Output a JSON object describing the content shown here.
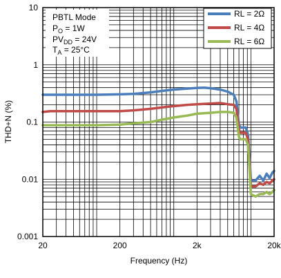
{
  "chart_data": {
    "type": "line",
    "xlabel": "Frequency (Hz)",
    "ylabel": "THD+N (%)",
    "x_scale": "log",
    "y_scale": "log",
    "xlim": [
      20,
      20000
    ],
    "ylim": [
      0.001,
      10
    ],
    "x_ticks": [
      {
        "value": 20,
        "label": "20"
      },
      {
        "value": 200,
        "label": "200"
      },
      {
        "value": 2000,
        "label": "2k"
      },
      {
        "value": 20000,
        "label": "20k"
      }
    ],
    "y_ticks": [
      {
        "value": 10,
        "label": "10"
      },
      {
        "value": 1,
        "label": "1"
      },
      {
        "value": 0.1,
        "label": "0.1"
      },
      {
        "value": 0.01,
        "label": "0.01"
      },
      {
        "value": 0.001,
        "label": "0.001"
      }
    ],
    "grid": true,
    "legend_position": "top-right",
    "conditions": {
      "mode": "PBTL Mode",
      "po_main": "P",
      "po_sub": "O",
      "po_rest": " = 1W",
      "pv_main": "PV",
      "pv_sub": "DD",
      "pv_rest": " = 24V",
      "ta_main": "T",
      "ta_sub": "A",
      "ta_rest": " = 25°C"
    },
    "series": [
      {
        "name": "RL = 2Ω",
        "color": "#4a7ebb",
        "points": [
          [
            20,
            0.3
          ],
          [
            50,
            0.3
          ],
          [
            100,
            0.3
          ],
          [
            200,
            0.305
          ],
          [
            300,
            0.31
          ],
          [
            500,
            0.33
          ],
          [
            700,
            0.35
          ],
          [
            1000,
            0.37
          ],
          [
            1500,
            0.385
          ],
          [
            2000,
            0.395
          ],
          [
            2500,
            0.4
          ],
          [
            3000,
            0.39
          ],
          [
            4000,
            0.37
          ],
          [
            5000,
            0.34
          ],
          [
            6000,
            0.3
          ],
          [
            6500,
            0.23
          ],
          [
            7000,
            0.09
          ],
          [
            7300,
            0.08
          ],
          [
            8000,
            0.08
          ],
          [
            8600,
            0.08
          ],
          [
            9200,
            0.06
          ],
          [
            9600,
            0.025
          ],
          [
            10000,
            0.0095
          ],
          [
            11500,
            0.0095
          ],
          [
            13000,
            0.0115
          ],
          [
            14500,
            0.0095
          ],
          [
            16000,
            0.0125
          ],
          [
            17500,
            0.0105
          ],
          [
            19000,
            0.013
          ],
          [
            20000,
            0.014
          ]
        ]
      },
      {
        "name": "RL = 4Ω",
        "color": "#be4b48",
        "points": [
          [
            20,
            0.15
          ],
          [
            25,
            0.155
          ],
          [
            50,
            0.155
          ],
          [
            100,
            0.155
          ],
          [
            200,
            0.155
          ],
          [
            300,
            0.16
          ],
          [
            500,
            0.17
          ],
          [
            700,
            0.18
          ],
          [
            1000,
            0.19
          ],
          [
            1500,
            0.2
          ],
          [
            2000,
            0.205
          ],
          [
            3000,
            0.21
          ],
          [
            4000,
            0.215
          ],
          [
            5000,
            0.205
          ],
          [
            6000,
            0.2
          ],
          [
            6500,
            0.17
          ],
          [
            7000,
            0.075
          ],
          [
            7300,
            0.065
          ],
          [
            8000,
            0.065
          ],
          [
            8600,
            0.065
          ],
          [
            9200,
            0.05
          ],
          [
            9600,
            0.02
          ],
          [
            10000,
            0.0075
          ],
          [
            11500,
            0.0075
          ],
          [
            13000,
            0.0085
          ],
          [
            14500,
            0.008
          ],
          [
            16000,
            0.009
          ],
          [
            17500,
            0.0085
          ],
          [
            19000,
            0.0095
          ],
          [
            20000,
            0.01
          ]
        ]
      },
      {
        "name": "RL = 6Ω",
        "color": "#98b954",
        "points": [
          [
            20,
            0.088
          ],
          [
            50,
            0.088
          ],
          [
            100,
            0.088
          ],
          [
            200,
            0.09
          ],
          [
            300,
            0.095
          ],
          [
            500,
            0.1
          ],
          [
            700,
            0.11
          ],
          [
            1000,
            0.12
          ],
          [
            1500,
            0.13
          ],
          [
            2000,
            0.14
          ],
          [
            3000,
            0.145
          ],
          [
            4000,
            0.15
          ],
          [
            5000,
            0.15
          ],
          [
            6000,
            0.145
          ],
          [
            6500,
            0.12
          ],
          [
            7000,
            0.055
          ],
          [
            7300,
            0.05
          ],
          [
            8000,
            0.05
          ],
          [
            8600,
            0.05
          ],
          [
            9200,
            0.04
          ],
          [
            9600,
            0.015
          ],
          [
            10000,
            0.0055
          ],
          [
            11500,
            0.005
          ],
          [
            13000,
            0.0055
          ],
          [
            14500,
            0.0055
          ],
          [
            16000,
            0.006
          ],
          [
            17500,
            0.0055
          ],
          [
            19000,
            0.006
          ],
          [
            20000,
            0.0065
          ]
        ]
      }
    ]
  }
}
